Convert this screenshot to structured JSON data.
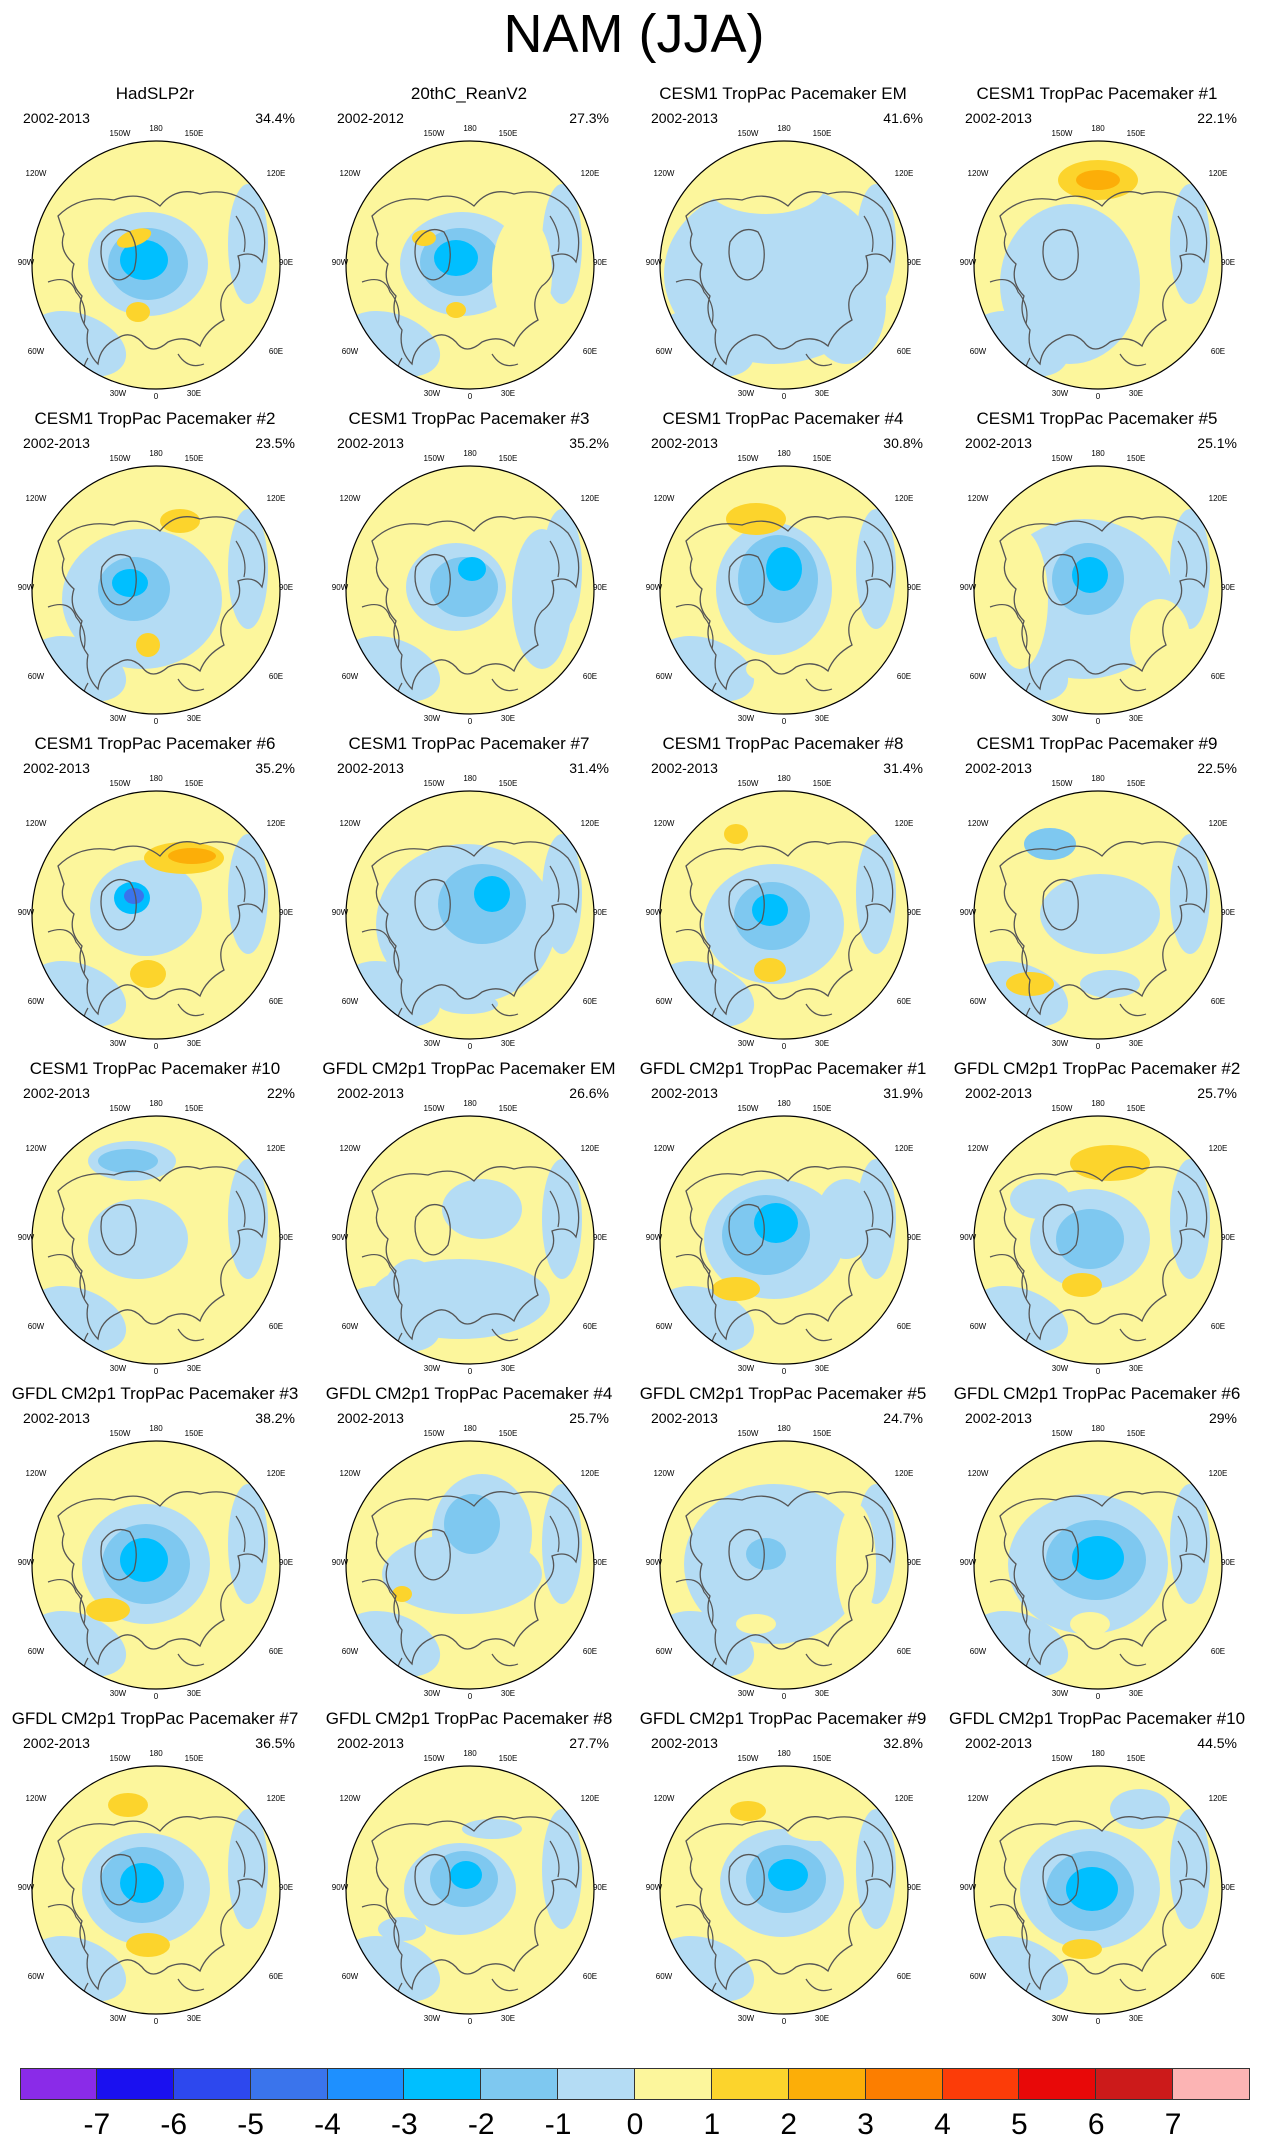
{
  "title": "NAM (JJA)",
  "longitude_labels": [
    "180",
    "150W",
    "150E",
    "120W",
    "120E",
    "90W",
    "90E",
    "60W",
    "60E",
    "30W",
    "30E",
    "0"
  ],
  "panels": [
    {
      "title": "HadSLP2r",
      "period": "2002-2013",
      "pct": "34.4%"
    },
    {
      "title": "20thC_ReanV2",
      "period": "2002-2012",
      "pct": "27.3%"
    },
    {
      "title": "CESM1 TropPac Pacemaker EM",
      "period": "2002-2013",
      "pct": "41.6%"
    },
    {
      "title": "CESM1 TropPac Pacemaker #1",
      "period": "2002-2013",
      "pct": "22.1%"
    },
    {
      "title": "CESM1 TropPac Pacemaker #2",
      "period": "2002-2013",
      "pct": "23.5%"
    },
    {
      "title": "CESM1 TropPac Pacemaker #3",
      "period": "2002-2013",
      "pct": "35.2%"
    },
    {
      "title": "CESM1 TropPac Pacemaker #4",
      "period": "2002-2013",
      "pct": "30.8%"
    },
    {
      "title": "CESM1 TropPac Pacemaker #5",
      "period": "2002-2013",
      "pct": "25.1%"
    },
    {
      "title": "CESM1 TropPac Pacemaker #6",
      "period": "2002-2013",
      "pct": "35.2%"
    },
    {
      "title": "CESM1 TropPac Pacemaker #7",
      "period": "2002-2013",
      "pct": "31.4%"
    },
    {
      "title": "CESM1 TropPac Pacemaker #8",
      "period": "2002-2013",
      "pct": "31.4%"
    },
    {
      "title": "CESM1 TropPac Pacemaker #9",
      "period": "2002-2013",
      "pct": "22.5%"
    },
    {
      "title": "CESM1 TropPac Pacemaker #10",
      "period": "2002-2013",
      "pct": "22%"
    },
    {
      "title": "GFDL CM2p1 TropPac Pacemaker EM",
      "period": "2002-2013",
      "pct": "26.6%"
    },
    {
      "title": "GFDL CM2p1 TropPac Pacemaker #1",
      "period": "2002-2013",
      "pct": "31.9%"
    },
    {
      "title": "GFDL CM2p1 TropPac Pacemaker #2",
      "period": "2002-2013",
      "pct": "25.7%"
    },
    {
      "title": "GFDL CM2p1 TropPac Pacemaker #3",
      "period": "2002-2013",
      "pct": "38.2%"
    },
    {
      "title": "GFDL CM2p1 TropPac Pacemaker #4",
      "period": "2002-2013",
      "pct": "25.7%"
    },
    {
      "title": "GFDL CM2p1 TropPac Pacemaker #5",
      "period": "2002-2013",
      "pct": "24.7%"
    },
    {
      "title": "GFDL CM2p1 TropPac Pacemaker #6",
      "period": "2002-2013",
      "pct": "29%"
    },
    {
      "title": "GFDL CM2p1 TropPac Pacemaker #7",
      "period": "2002-2013",
      "pct": "36.5%"
    },
    {
      "title": "GFDL CM2p1 TropPac Pacemaker #8",
      "period": "2002-2013",
      "pct": "27.7%"
    },
    {
      "title": "GFDL CM2p1 TropPac Pacemaker #9",
      "period": "2002-2013",
      "pct": "32.8%"
    },
    {
      "title": "GFDL CM2p1 TropPac Pacemaker #10",
      "period": "2002-2013",
      "pct": "44.5%"
    }
  ],
  "colorbar": {
    "colors": [
      "#8a2be8",
      "#1a10f0",
      "#2d48ee",
      "#3a74ec",
      "#1e90ff",
      "#00bfff",
      "#7ec8f0",
      "#b4dcf4",
      "#fcf69c",
      "#fcd42c",
      "#fcae08",
      "#fc7e00",
      "#fc3c08",
      "#e80808",
      "#cc1a1a",
      "#fcb4b4"
    ],
    "ticks": [
      "-7",
      "-6",
      "-5",
      "-4",
      "-3",
      "-2",
      "-1",
      "0",
      "1",
      "2",
      "3",
      "4",
      "5",
      "6",
      "7"
    ]
  }
}
